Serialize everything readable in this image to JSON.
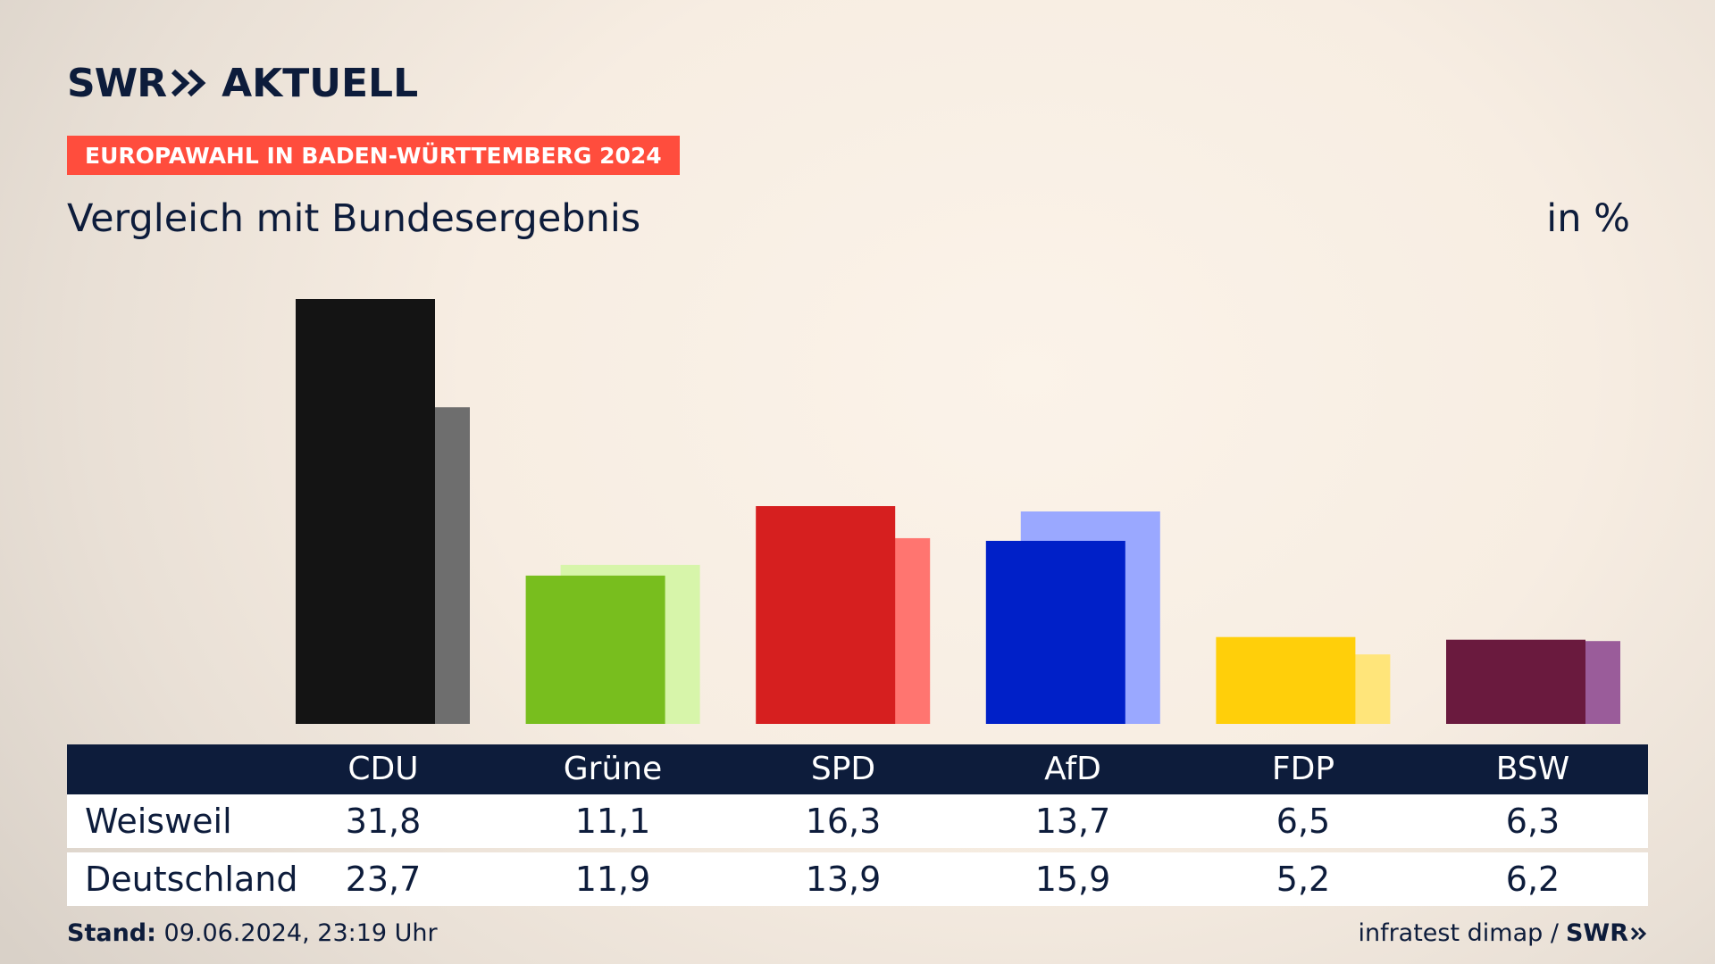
{
  "logo": {
    "brand": "SWR",
    "section": "AKTUELL"
  },
  "badge": "EUROPAWAHL IN BADEN-WÜRTTEMBERG 2024",
  "subtitle": "Vergleich mit Bundesergebnis",
  "unit": "in %",
  "colors": {
    "navy": "#0d1c3b",
    "badge": "#ff4d3d",
    "parties": {
      "CDU": {
        "primary": "#141414",
        "secondary": "#6e6e6e"
      },
      "Grüne": {
        "primary": "#78be1e",
        "secondary": "#d7f5aa"
      },
      "SPD": {
        "primary": "#d61f1f",
        "secondary": "#ff7570"
      },
      "AfD": {
        "primary": "#0020c8",
        "secondary": "#9aa8ff"
      },
      "FDP": {
        "primary": "#ffcf0a",
        "secondary": "#ffe57a"
      },
      "BSW": {
        "primary": "#6a1a3e",
        "secondary": "#9a5c9a"
      }
    }
  },
  "chart_data": {
    "type": "bar",
    "categories": [
      "CDU",
      "Grüne",
      "SPD",
      "AfD",
      "FDP",
      "BSW"
    ],
    "series": [
      {
        "name": "Weisweil",
        "values": [
          31.8,
          11.1,
          16.3,
          13.7,
          6.5,
          6.3
        ]
      },
      {
        "name": "Deutschland",
        "values": [
          23.7,
          11.9,
          13.9,
          15.9,
          5.2,
          6.2
        ]
      }
    ],
    "ylim": [
      0,
      31.8
    ],
    "grid": false,
    "legend": "table below chart"
  },
  "table": {
    "headers": [
      "CDU",
      "Grüne",
      "SPD",
      "AfD",
      "FDP",
      "BSW"
    ],
    "rows": [
      {
        "label": "Weisweil",
        "values": [
          "31,8",
          "11,1",
          "16,3",
          "13,7",
          "6,5",
          "6,3"
        ]
      },
      {
        "label": "Deutschland",
        "values": [
          "23,7",
          "11,9",
          "13,9",
          "15,9",
          "5,2",
          "6,2"
        ]
      }
    ]
  },
  "footer": {
    "stand_label": "Stand:",
    "stand_value": "09.06.2024, 23:19 Uhr",
    "source": "infratest dimap /",
    "source_brand": "SWR"
  }
}
